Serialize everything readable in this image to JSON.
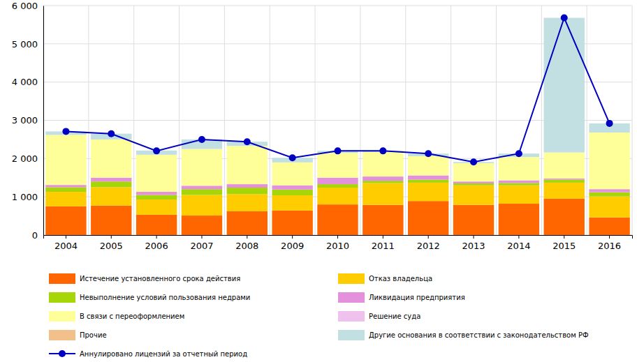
{
  "chart_data": {
    "type": "bar",
    "stacked": true,
    "grid": true,
    "categories": [
      "2004",
      "2005",
      "2006",
      "2007",
      "2008",
      "2009",
      "2010",
      "2011",
      "2012",
      "2013",
      "2014",
      "2015",
      "2016"
    ],
    "ylim": [
      0,
      6000
    ],
    "yticks": [
      0,
      {
        "value": 1000,
        "label": "1 000"
      },
      {
        "value": 2000,
        "label": "2 000"
      },
      {
        "value": 3000,
        "label": "3 000"
      },
      {
        "value": 4000,
        "label": "4 000"
      },
      {
        "value": 5000,
        "label": "5 000"
      },
      {
        "value": 6000,
        "label": "6 000"
      }
    ],
    "series": [
      {
        "name": "Истечение установленного срока действия",
        "type": "bar",
        "color": "#ff6600",
        "values": [
          750,
          770,
          530,
          510,
          620,
          640,
          800,
          790,
          890,
          790,
          820,
          950,
          460
        ]
      },
      {
        "name": "Отказ владельца",
        "type": "bar",
        "color": "#ffcc00",
        "values": [
          380,
          480,
          400,
          540,
          450,
          400,
          440,
          570,
          480,
          510,
          480,
          420,
          550
        ]
      },
      {
        "name": "Невыполнение условий пользования недрами",
        "type": "bar",
        "color": "#a6d608",
        "values": [
          120,
          150,
          120,
          150,
          170,
          150,
          90,
          60,
          80,
          50,
          60,
          80,
          110
        ]
      },
      {
        "name": "Ликвидация предприятия",
        "type": "bar",
        "color": "#e590dd",
        "values": [
          60,
          100,
          80,
          90,
          90,
          110,
          170,
          110,
          110,
          50,
          70,
          30,
          80
        ]
      },
      {
        "name": "В связи с переоформлением",
        "type": "bar",
        "color": "#ffff99",
        "values": [
          1310,
          1000,
          970,
          960,
          1000,
          600,
          650,
          640,
          500,
          480,
          610,
          680,
          1480
        ]
      },
      {
        "name": "Решение суда",
        "type": "bar",
        "color": "#efc2ee",
        "values": [
          0,
          0,
          0,
          0,
          0,
          0,
          0,
          0,
          0,
          0,
          0,
          0,
          0
        ]
      },
      {
        "name": "Прочие",
        "type": "bar",
        "color": "#f2c08b",
        "values": [
          0,
          0,
          0,
          0,
          0,
          0,
          0,
          0,
          0,
          0,
          0,
          0,
          0
        ]
      },
      {
        "name": "Другие основания в соответствии с законодательством РФ",
        "type": "bar",
        "color": "#c2dfe1",
        "values": [
          90,
          150,
          110,
          250,
          110,
          120,
          50,
          30,
          70,
          30,
          90,
          3520,
          240
        ]
      },
      {
        "name": "Аннулировано лицензий за отчетный период",
        "type": "line",
        "color": "#0000c0",
        "marker": "circle",
        "values": [
          2710,
          2650,
          2200,
          2500,
          2440,
          2020,
          2200,
          2200,
          2130,
          1910,
          2130,
          5680,
          2920
        ]
      }
    ]
  }
}
